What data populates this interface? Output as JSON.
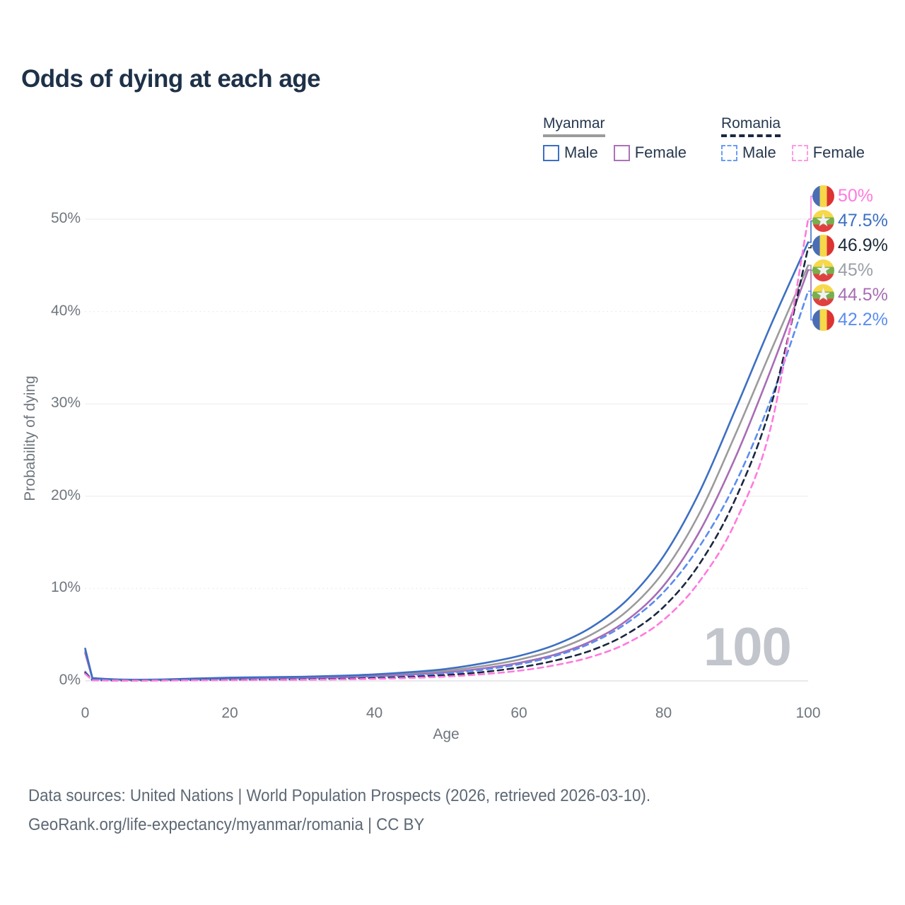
{
  "title": "Odds of dying at each age",
  "legend": {
    "groups": [
      {
        "label": "Myanmar",
        "line_style": "solid",
        "underline_color": "#9b9b9b",
        "items": [
          {
            "label": "Male",
            "color": "#3d6fc3",
            "dashed": false
          },
          {
            "label": "Female",
            "color": "#ab72ba",
            "dashed": false
          }
        ]
      },
      {
        "label": "Romania",
        "line_style": "dashed",
        "underline_color": "#1b2840",
        "items": [
          {
            "label": "Male",
            "color": "#6a9ef5",
            "dashed": true
          },
          {
            "label": "Female",
            "color": "#ff9be0",
            "dashed": true
          }
        ]
      }
    ]
  },
  "chart_data": {
    "type": "line",
    "title": "Odds of dying at each age",
    "xlabel": "Age",
    "ylabel": "Probability of dying",
    "xlim": [
      0,
      100
    ],
    "ylim_pct": [
      0,
      52
    ],
    "x_ticks": [
      0,
      20,
      40,
      60,
      80,
      100
    ],
    "y_ticks": [
      {
        "pct": 0,
        "label": "0%"
      },
      {
        "pct": 10,
        "label": "10%"
      },
      {
        "pct": 20,
        "label": "20%"
      },
      {
        "pct": 30,
        "label": "30%"
      },
      {
        "pct": 40,
        "label": "40%"
      },
      {
        "pct": 50,
        "label": "50%"
      }
    ],
    "grid": {
      "shown": true,
      "dotted_at_pct": [
        10,
        40
      ],
      "solid_at_pct": [
        0,
        20,
        30,
        50
      ]
    },
    "x": [
      0,
      1,
      5,
      10,
      15,
      20,
      25,
      30,
      35,
      40,
      45,
      50,
      55,
      60,
      65,
      70,
      75,
      80,
      85,
      90,
      95,
      100
    ],
    "series": [
      {
        "id": "myanmar-total",
        "name": "Myanmar (both sexes)",
        "color": "#9b9b9b",
        "dashed": false,
        "values": [
          3.2,
          0.27,
          0.13,
          0.13,
          0.21,
          0.3,
          0.34,
          0.38,
          0.46,
          0.6,
          0.8,
          1.1,
          1.6,
          2.3,
          3.35,
          5.0,
          7.6,
          11.8,
          18.2,
          26.8,
          36.0,
          45.0
        ]
      },
      {
        "id": "myanmar-female",
        "name": "Myanmar Female",
        "color": "#a76db4",
        "dashed": false,
        "values": [
          3.0,
          0.25,
          0.12,
          0.12,
          0.17,
          0.24,
          0.28,
          0.32,
          0.38,
          0.5,
          0.68,
          0.92,
          1.35,
          1.95,
          2.85,
          4.3,
          6.6,
          10.3,
          16.2,
          24.3,
          34.0,
          44.5
        ]
      },
      {
        "id": "myanmar-male",
        "name": "Myanmar Male",
        "color": "#3d6fc3",
        "dashed": false,
        "values": [
          3.5,
          0.3,
          0.15,
          0.15,
          0.25,
          0.35,
          0.4,
          0.45,
          0.55,
          0.7,
          0.95,
          1.3,
          1.9,
          2.7,
          3.9,
          5.8,
          8.8,
          13.5,
          20.5,
          29.5,
          38.8,
          47.5
        ]
      },
      {
        "id": "romania-male",
        "name": "Romania Male",
        "color": "#5b8def",
        "dashed": true,
        "values": [
          1.0,
          0.08,
          0.05,
          0.06,
          0.1,
          0.14,
          0.16,
          0.2,
          0.27,
          0.38,
          0.55,
          0.8,
          1.2,
          1.8,
          2.7,
          4.1,
          6.3,
          9.6,
          14.6,
          21.5,
          30.8,
          42.2
        ]
      },
      {
        "id": "romania-total",
        "name": "Romania (both sexes)",
        "color": "#1b2840",
        "dashed": true,
        "values": [
          0.85,
          0.07,
          0.04,
          0.05,
          0.08,
          0.11,
          0.13,
          0.16,
          0.21,
          0.3,
          0.43,
          0.63,
          0.95,
          1.45,
          2.2,
          3.3,
          5.1,
          8.0,
          12.7,
          19.8,
          30.2,
          46.9
        ]
      },
      {
        "id": "romania-female",
        "name": "Romania Female",
        "color": "#ff7ade",
        "dashed": true,
        "values": [
          0.75,
          0.06,
          0.04,
          0.04,
          0.06,
          0.08,
          0.1,
          0.12,
          0.16,
          0.22,
          0.32,
          0.47,
          0.72,
          1.1,
          1.7,
          2.6,
          4.1,
          6.6,
          10.8,
          17.3,
          28.0,
          50.0
        ]
      }
    ],
    "end_labels": [
      {
        "value": "50%",
        "end_pct": 50.0,
        "color": "#ff7ade",
        "flag": "romania",
        "series": "Romania Female"
      },
      {
        "value": "47.5%",
        "end_pct": 47.5,
        "color": "#3d6fc3",
        "flag": "myanmar",
        "series": "Myanmar Male"
      },
      {
        "value": "46.9%",
        "end_pct": 46.9,
        "color": "#1c2b3a",
        "flag": "romania",
        "series": "Romania (both sexes)"
      },
      {
        "value": "45%",
        "end_pct": 45.0,
        "color": "#9aa0a6",
        "flag": "myanmar",
        "series": "Myanmar (both sexes)"
      },
      {
        "value": "44.5%",
        "end_pct": 44.5,
        "color": "#a76db4",
        "flag": "myanmar",
        "series": "Myanmar Female"
      },
      {
        "value": "42.2%",
        "end_pct": 42.2,
        "color": "#5b8def",
        "flag": "romania",
        "series": "Romania Male"
      }
    ],
    "hover_age_watermark": "100"
  },
  "watermark": {
    "value": "100"
  },
  "footer": {
    "line1": "Data sources: United Nations | World Population Prospects (2026, retrieved 2026-03-10).",
    "line2": "GeoRank.org/life-expectancy/myanmar/romania | CC BY"
  }
}
